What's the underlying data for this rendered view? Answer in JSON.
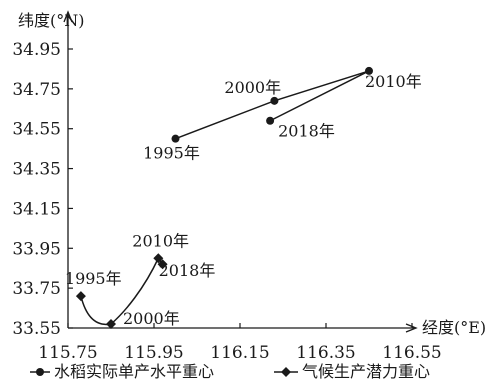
{
  "chart_data": {
    "type": "line",
    "xlabel": "经度(°E)",
    "ylabel": "纬度(°N)",
    "xlim": [
      115.75,
      116.55
    ],
    "ylim": [
      33.55,
      34.95
    ],
    "xticks": [
      "115.75",
      "115.95",
      "116.15",
      "116.35",
      "116.55"
    ],
    "yticks": [
      "33.55",
      "33.75",
      "33.95",
      "34.15",
      "34.35",
      "34.55",
      "34.75",
      "34.95"
    ],
    "grid": false,
    "legend_position": "bottom",
    "series": [
      {
        "name": "水稻实际单产水平重心",
        "marker": "circle",
        "color": "#1a1a1a",
        "points": [
          {
            "label": "1995年",
            "x": 116.0,
            "y": 34.5
          },
          {
            "label": "2000年",
            "x": 116.23,
            "y": 34.69
          },
          {
            "label": "2010年",
            "x": 116.45,
            "y": 34.84
          },
          {
            "label": "2018年",
            "x": 116.22,
            "y": 34.59
          }
        ]
      },
      {
        "name": "气候生产潜力重心",
        "marker": "diamond",
        "color": "#1a1a1a",
        "points": [
          {
            "label": "1995年",
            "x": 115.78,
            "y": 33.71
          },
          {
            "label": "2000年",
            "x": 115.85,
            "y": 33.57
          },
          {
            "label": "2010年",
            "x": 115.96,
            "y": 33.9
          },
          {
            "label": "2018年",
            "x": 115.97,
            "y": 33.87
          }
        ]
      }
    ]
  }
}
